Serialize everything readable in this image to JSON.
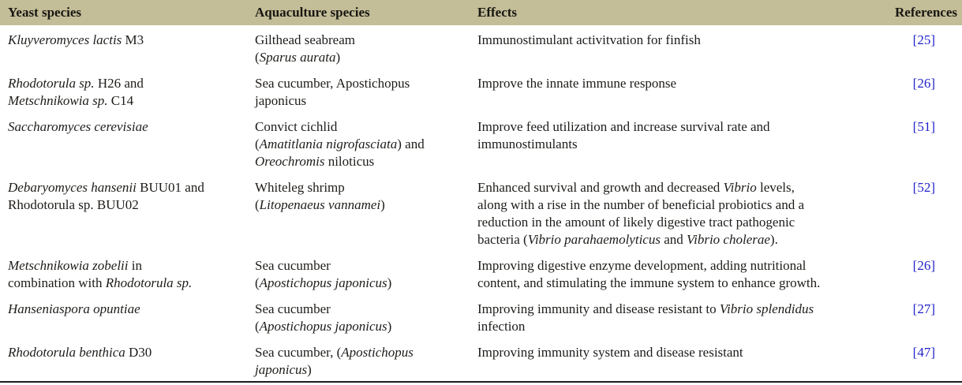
{
  "table": {
    "header_bg": "#c3bd98",
    "link_color": "#2222cc",
    "text_color": "#1e1c19",
    "columns": [
      "Yeast species",
      "Aquaculture species",
      "Effects",
      "References"
    ],
    "rows": [
      {
        "yeast": [
          {
            "t": "Kluyveromyces lactis",
            "i": true
          },
          {
            "t": " M3",
            "i": false
          }
        ],
        "aquaculture": [
          {
            "t": "Gilthead seabream\n(",
            "i": false
          },
          {
            "t": "Sparus aurata",
            "i": true
          },
          {
            "t": ")",
            "i": false
          }
        ],
        "effects": [
          {
            "t": "Immunostimulant activitvation for finfish",
            "i": false
          }
        ],
        "reference": "[25]"
      },
      {
        "yeast": [
          {
            "t": "Rhodotorula sp.",
            "i": true
          },
          {
            "t": " H26 and\n",
            "i": false
          },
          {
            "t": "Metschnikowia sp.",
            "i": true
          },
          {
            "t": " C14",
            "i": false
          }
        ],
        "aquaculture": [
          {
            "t": "Sea cucumber, Apostichopus\njaponicus",
            "i": false
          }
        ],
        "effects": [
          {
            "t": "Improve the innate immune response",
            "i": false
          }
        ],
        "reference": "[26]"
      },
      {
        "yeast": [
          {
            "t": "Saccharomyces cerevisiae",
            "i": true
          }
        ],
        "aquaculture": [
          {
            "t": "Convict cichlid\n(",
            "i": false
          },
          {
            "t": "Amatitlania nigrofasciata",
            "i": true
          },
          {
            "t": ") and\n",
            "i": false
          },
          {
            "t": "Oreochromis",
            "i": true
          },
          {
            "t": " niloticus",
            "i": false
          }
        ],
        "effects": [
          {
            "t": "Improve feed utilization and increase survival rate and\nimmunostimulants",
            "i": false
          }
        ],
        "reference": "[51]"
      },
      {
        "yeast": [
          {
            "t": "Debaryomyces hansenii",
            "i": true
          },
          {
            "t": " BUU01 and\nRhodotorula sp. BUU02",
            "i": false
          }
        ],
        "aquaculture": [
          {
            "t": "Whiteleg shrimp\n(",
            "i": false
          },
          {
            "t": "Litopenaeus vannamei",
            "i": true
          },
          {
            "t": ")",
            "i": false
          }
        ],
        "effects": [
          {
            "t": "Enhanced survival and growth and decreased ",
            "i": false
          },
          {
            "t": "Vibrio",
            "i": true
          },
          {
            "t": " levels,\nalong with a rise in the number of beneficial probiotics and a\nreduction in the amount of likely digestive tract pathogenic\nbacteria (",
            "i": false
          },
          {
            "t": "Vibrio parahaemolyticus",
            "i": true
          },
          {
            "t": " and ",
            "i": false
          },
          {
            "t": "Vibrio cholerae",
            "i": true
          },
          {
            "t": ").",
            "i": false
          }
        ],
        "reference": "[52]"
      },
      {
        "yeast": [
          {
            "t": "Metschnikowia zobelii",
            "i": true
          },
          {
            "t": " in\ncombination with ",
            "i": false
          },
          {
            "t": "Rhodotorula sp.",
            "i": true
          }
        ],
        "aquaculture": [
          {
            "t": "Sea cucumber\n(",
            "i": false
          },
          {
            "t": "Apostichopus japonicus",
            "i": true
          },
          {
            "t": ")",
            "i": false
          }
        ],
        "effects": [
          {
            "t": "Improving digestive enzyme development, adding nutritional\ncontent, and stimulating the immune system to enhance growth.",
            "i": false
          }
        ],
        "reference": "[26]"
      },
      {
        "yeast": [
          {
            "t": "Hanseniaspora opuntiae",
            "i": true
          }
        ],
        "aquaculture": [
          {
            "t": "Sea cucumber\n(",
            "i": false
          },
          {
            "t": "Apostichopus japonicus",
            "i": true
          },
          {
            "t": ")",
            "i": false
          }
        ],
        "effects": [
          {
            "t": "Improving immunity and disease resistant to ",
            "i": false
          },
          {
            "t": "Vibrio splendidus",
            "i": true
          },
          {
            "t": "\ninfection",
            "i": false
          }
        ],
        "reference": "[27]"
      },
      {
        "yeast": [
          {
            "t": "Rhodotorula benthica",
            "i": true
          },
          {
            "t": " D30",
            "i": false
          }
        ],
        "aquaculture": [
          {
            "t": "Sea cucumber, (",
            "i": false
          },
          {
            "t": "Apostichopus\njaponicus",
            "i": true
          },
          {
            "t": ")",
            "i": false
          }
        ],
        "effects": [
          {
            "t": "Improving immunity system and disease resistant",
            "i": false
          }
        ],
        "reference": "[47]"
      }
    ]
  }
}
